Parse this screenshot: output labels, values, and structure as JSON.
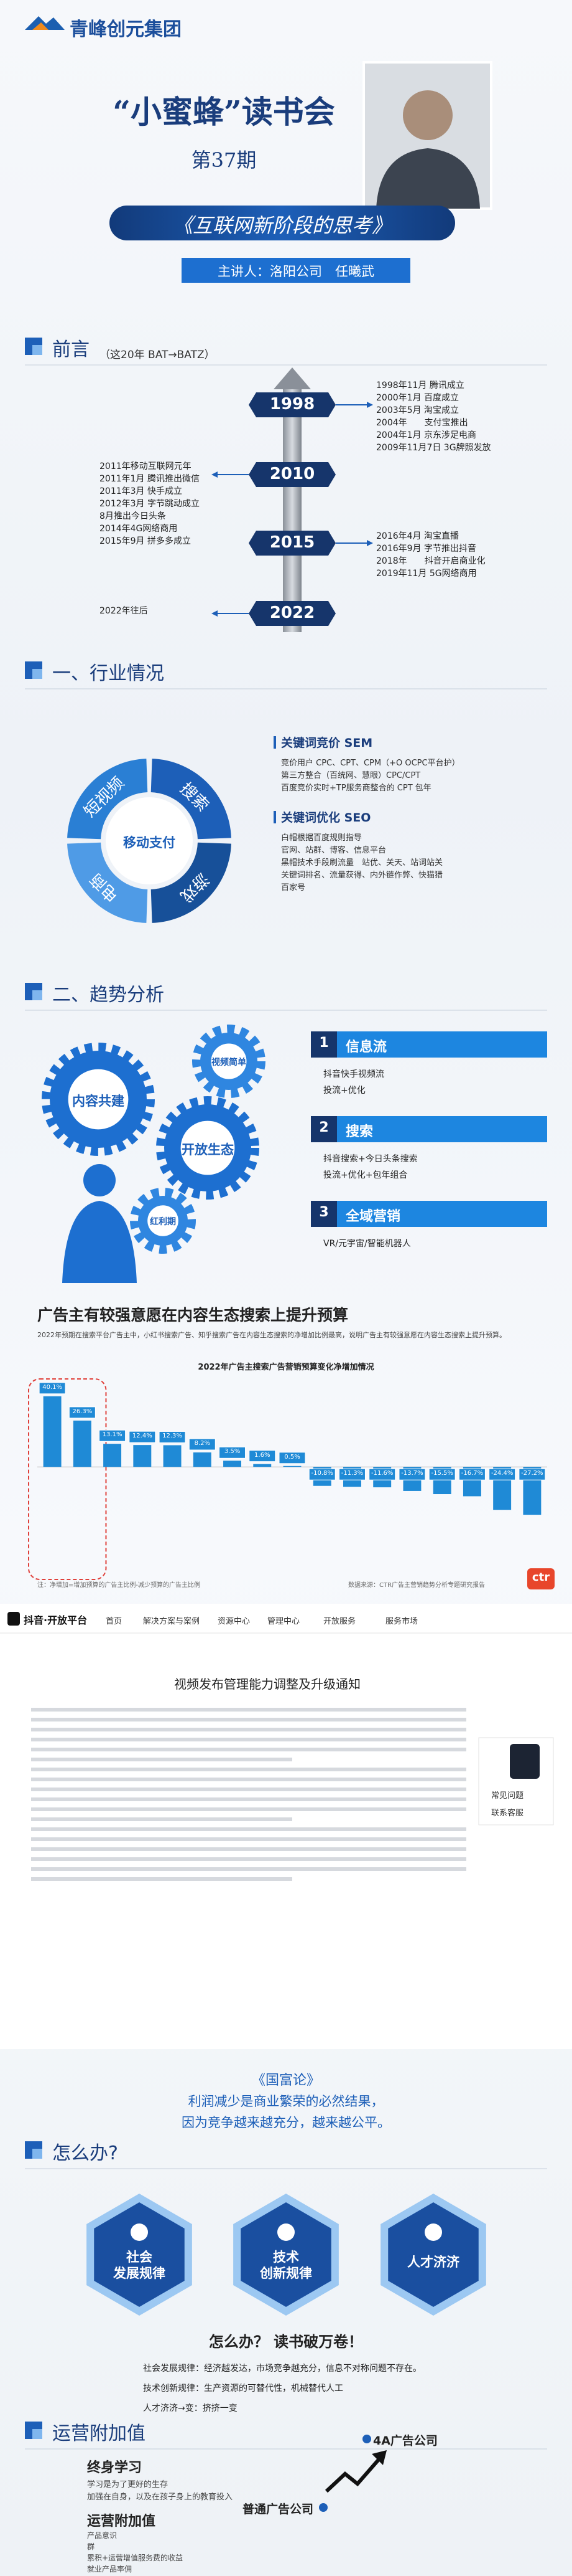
{
  "header": {
    "logo": "青峰创元集团",
    "title": "“小蜜蜂”读书会",
    "issue": "第37期",
    "topic": "《互联网新阶段的思考》",
    "speaker": "主讲人：洛阳公司　任曦武"
  },
  "preface": {
    "heading": "前言",
    "subheading": "（这20年 BAT→BATZ）",
    "timeline": [
      {
        "year": "1998",
        "events": [
          "1998年11月 腾讯成立",
          "2000年1月 百度成立",
          "2003年5月 淘宝成立",
          "2004年　　支付宝推出",
          "2004年1月 京东涉足电商",
          "2009年11月7日 3G牌照发放"
        ]
      },
      {
        "year": "2010",
        "events": [
          "2011年移动互联网元年",
          "2011年1月 腾讯推出微信",
          "2011年3月 快手成立",
          "2012年3月 字节跳动成立",
          "8月推出今日头条",
          "2014年4G网络商用",
          "2015年9月 拼多多成立"
        ]
      },
      {
        "year": "2015",
        "events": [
          "2016年4月 淘宝直播",
          "2016年9月 字节推出抖音",
          "2018年　　抖音开启商业化",
          "2019年11月 5G网络商用"
        ]
      },
      {
        "year": "2022",
        "events": [
          "2022年往后"
        ]
      }
    ]
  },
  "industry": {
    "heading": "一、行业情况",
    "donut": {
      "center": "移动支付",
      "segments": [
        "短视频",
        "搜索",
        "电商",
        "游戏"
      ]
    },
    "sem": {
      "title": "关键词竞价 SEM",
      "items": [
        "竞价用户 CPC、CPT、CPM（+O OCPC平台护）",
        "第三方整合（百统网、慧眼）CPC/CPT",
        "百度竞价实时+TP服务商整合的 CPT 包年"
      ]
    },
    "seo": {
      "title": "关键词优化 SEO",
      "items": [
        "白帽根据百度规则指导",
        "官网、站群、博客、信息平台",
        "黑帽技术手段刷流量　站优、关天、站词站关",
        "关键词排名、流量获得、内外链作弊、快猫猎",
        "百家号"
      ]
    }
  },
  "trend": {
    "heading": "二、趋势分析",
    "gears": [
      "内容共建",
      "视频简单",
      "开放生态",
      "红利期"
    ],
    "steps": [
      {
        "num": "1",
        "title": "信息流",
        "items": [
          "抖音快手视频流",
          "投流+优化"
        ]
      },
      {
        "num": "2",
        "title": "搜索",
        "items": [
          "抖音搜索+今日头条搜索",
          "投流+优化+包年组合"
        ]
      },
      {
        "num": "3",
        "title": "全域营销",
        "items": [
          "VR/元宇宙/智能机器人"
        ]
      }
    ]
  },
  "report": {
    "headline": "广告主有较强意愿在内容生态搜索上提升预算",
    "intro": "2022年预期在搜索平台广告主中，小红书搜索广告、知乎搜索广告在内容生态搜索的净增加比例最高，说明广告主有较强意愿在内容生态搜索上提升预算。",
    "note": "注：净增加=增加预算的广告主比例-减少预算的广告主比例",
    "source": "数据来源：CTR广告主营销趋势分析专题研究报告",
    "logo": "ctr"
  },
  "chart_data": {
    "type": "bar",
    "title": "2022年广告主搜索广告营销预算变化净增加情况",
    "categories": [
      null,
      null,
      null,
      null,
      null,
      null,
      null,
      null,
      null,
      null,
      null,
      null,
      null,
      null,
      null,
      null,
      null
    ],
    "values": [
      40.1,
      26.3,
      13.1,
      12.4,
      12.3,
      8.2,
      3.5,
      1.6,
      0.5,
      -10.8,
      -11.3,
      -11.6,
      -13.7,
      -15.5,
      -16.7,
      -24.4,
      -27.2
    ],
    "value_labels": [
      "40.1%",
      "26.3%",
      "13.1%",
      "12.4%",
      "12.3%",
      "8.2%",
      "3.5%",
      "1.6%",
      "0.5%",
      "-10.8%",
      "-11.3%",
      "-11.6%",
      "-13.7%",
      "-15.5%",
      "-16.7%",
      "-24.4%",
      "-27.2%"
    ],
    "color": "#1f8ad6",
    "ylim": [
      -30,
      45
    ],
    "grid": false
  },
  "screenshot": {
    "brand": "抖音·开放平台",
    "nav": [
      "首页",
      "解决方案与案例",
      "资源中心",
      "管理中心",
      "开放服务",
      "服务市场"
    ],
    "title": "视频发布管理能力调整及升级通知",
    "side": [
      "常见问题",
      "联系客服"
    ]
  },
  "quote": {
    "source": "《国富论》",
    "lines": [
      "利润减少是商业繁荣的必然结果，",
      "因为竞争越来越充分，越来越公平。"
    ]
  },
  "solution": {
    "heading": "怎么办?",
    "badges": [
      [
        "社会",
        "发展规律"
      ],
      [
        "技术",
        "创新规律"
      ],
      [
        "人才济济"
      ]
    ],
    "slogan": "怎么办？ 读书破万卷！",
    "points": [
      "社会发展规律：经济越发达，市场竞争越充分，信息不对称问题不存在。",
      "技术创新规律：生产资源的可替代性，机械替代人工",
      "人才济济→变：挤挤一变"
    ]
  },
  "value_add": {
    "heading": "运营附加值",
    "learning": {
      "title": "终身学习",
      "items": [
        "学习是为了更好的生存",
        "加强在自身，以及在孩子身上的教育投入"
      ]
    },
    "addon": {
      "title": "运营附加值",
      "items": [
        "产品意识",
        "群",
        "累积+运营增值服务费的收益",
        "就业产品率佣"
      ]
    },
    "tiers": [
      "4A广告公司",
      "普通广告公司"
    ]
  }
}
